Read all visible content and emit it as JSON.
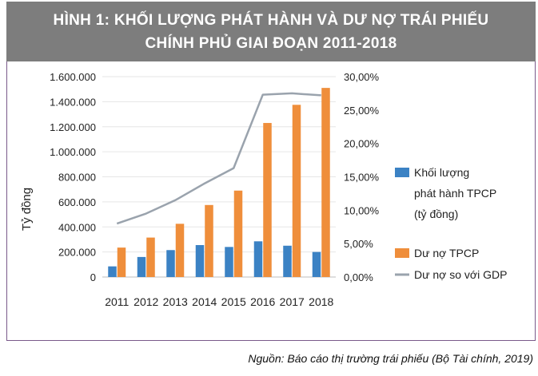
{
  "header": {
    "line1": "HÌNH 1: KHỐI LƯỢNG PHÁT HÀNH VÀ DƯ NỢ TRÁI PHIẾU",
    "line2": "CHÍNH PHỦ GIAI ĐOẠN 2011-2018"
  },
  "caption": "Nguồn: Báo cáo thị trường trái phiếu (Bộ Tài chính, 2019)",
  "colors": {
    "header_bg": "#7d7d7d",
    "issuance": "#3b82c4",
    "debt": "#ef8e3b",
    "ratio": "#9aa3ad"
  },
  "chart_data": {
    "type": "bar",
    "categories": [
      "2011",
      "2012",
      "2013",
      "2014",
      "2015",
      "2016",
      "2017",
      "2018"
    ],
    "ylabel": "Tỷ đồng",
    "ylim": [
      0,
      1600000
    ],
    "y2lim": [
      0,
      30
    ],
    "yticks": [
      "0",
      "200.000",
      "400.000",
      "600.000",
      "800.000",
      "1.000.000",
      "1.200.000",
      "1.400.000",
      "1.600.000"
    ],
    "y2ticks": [
      "0,00%",
      "5,00%",
      "10,00%",
      "15,00%",
      "20,00%",
      "25,00%",
      "30,00%"
    ],
    "legend_position": "right",
    "series": [
      {
        "name": "Khối lượng phát hành TPCP (tỷ đồng)",
        "kind": "bar",
        "axis": "left",
        "color": "#3b82c4",
        "values": [
          85000,
          160000,
          215000,
          255000,
          240000,
          285000,
          250000,
          200000
        ]
      },
      {
        "name": "Dư nợ TPCP",
        "kind": "bar",
        "axis": "left",
        "color": "#ef8e3b",
        "values": [
          235000,
          315000,
          425000,
          575000,
          690000,
          1230000,
          1375000,
          1510000
        ]
      },
      {
        "name": "Dư nợ so với GDP",
        "kind": "line",
        "axis": "right",
        "color": "#9aa3ad",
        "values": [
          8.0,
          9.5,
          11.5,
          14.0,
          16.3,
          27.3,
          27.5,
          27.2
        ]
      }
    ]
  },
  "legend": {
    "issuance_line1": "Khối lượng",
    "issuance_line2": "phát hành TPCP",
    "issuance_line3": "(tỷ đồng)",
    "debt": "Dư nợ TPCP",
    "ratio": "Dư nợ so với GDP"
  }
}
